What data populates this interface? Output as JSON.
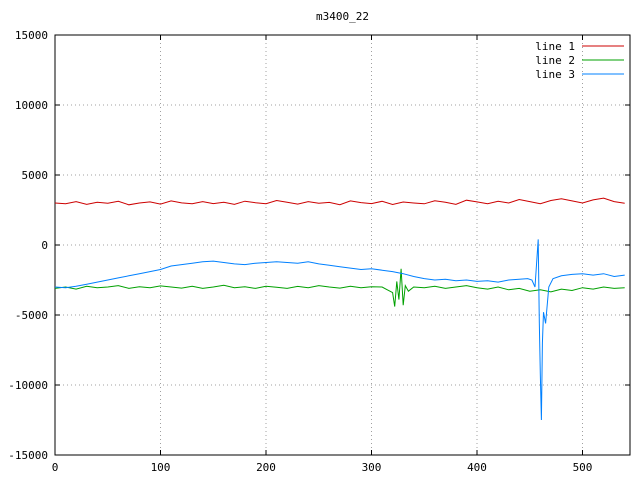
{
  "chart_data": {
    "type": "line",
    "title": "m3400_22",
    "xlabel": "",
    "ylabel": "",
    "xlim": [
      0,
      545
    ],
    "ylim": [
      -15000,
      15000
    ],
    "x_ticks": [
      0,
      100,
      200,
      300,
      400,
      500
    ],
    "y_ticks": [
      -15000,
      -10000,
      -5000,
      0,
      5000,
      10000,
      15000
    ],
    "grid": true,
    "legend_position": "top-right",
    "series": [
      {
        "name": "line 1",
        "color": "#cc0000",
        "x": [
          0,
          10,
          20,
          30,
          40,
          50,
          60,
          70,
          80,
          90,
          100,
          110,
          120,
          130,
          140,
          150,
          160,
          170,
          180,
          190,
          200,
          210,
          220,
          230,
          240,
          250,
          260,
          270,
          280,
          290,
          300,
          310,
          320,
          330,
          340,
          350,
          360,
          370,
          380,
          390,
          400,
          410,
          420,
          430,
          440,
          450,
          460,
          470,
          480,
          490,
          500,
          510,
          520,
          530,
          540
        ],
        "y": [
          3000,
          2950,
          3100,
          2900,
          3050,
          2980,
          3120,
          2870,
          3000,
          3080,
          2920,
          3150,
          3010,
          2940,
          3100,
          2960,
          3050,
          2900,
          3130,
          3020,
          2950,
          3180,
          3060,
          2920,
          3100,
          2980,
          3040,
          2880,
          3150,
          3030,
          2960,
          3120,
          2890,
          3070,
          3000,
          2940,
          3160,
          3050,
          2900,
          3200,
          3080,
          2950,
          3120,
          3000,
          3250,
          3100,
          2950,
          3180,
          3300,
          3150,
          3000,
          3220,
          3350,
          3100,
          2980
        ]
      },
      {
        "name": "line 2",
        "color": "#00a000",
        "x": [
          0,
          10,
          20,
          30,
          40,
          50,
          60,
          70,
          80,
          90,
          100,
          110,
          120,
          130,
          140,
          150,
          160,
          170,
          180,
          190,
          200,
          210,
          220,
          230,
          240,
          250,
          260,
          270,
          280,
          290,
          300,
          310,
          315,
          320,
          322,
          324,
          326,
          328,
          330,
          332,
          335,
          340,
          350,
          360,
          370,
          380,
          390,
          400,
          410,
          420,
          430,
          440,
          450,
          460,
          470,
          480,
          490,
          500,
          510,
          520,
          530,
          540
        ],
        "y": [
          -3100,
          -3000,
          -3150,
          -2950,
          -3050,
          -3000,
          -2900,
          -3100,
          -2980,
          -3050,
          -2920,
          -3000,
          -3080,
          -2950,
          -3100,
          -3000,
          -2880,
          -3050,
          -2980,
          -3100,
          -2950,
          -3020,
          -3100,
          -2960,
          -3050,
          -2900,
          -3000,
          -3080,
          -2940,
          -3050,
          -2980,
          -3000,
          -3200,
          -3400,
          -4400,
          -2600,
          -3900,
          -1700,
          -4300,
          -2900,
          -3300,
          -3000,
          -3050,
          -2950,
          -3100,
          -3000,
          -2900,
          -3050,
          -3150,
          -3000,
          -3200,
          -3100,
          -3300,
          -3200,
          -3350,
          -3150,
          -3250,
          -3050,
          -3150,
          -3000,
          -3100,
          -3050
        ]
      },
      {
        "name": "line 3",
        "color": "#0080ff",
        "x": [
          0,
          10,
          20,
          30,
          40,
          50,
          60,
          70,
          80,
          90,
          100,
          110,
          120,
          130,
          140,
          150,
          160,
          170,
          180,
          190,
          200,
          210,
          220,
          230,
          240,
          250,
          260,
          270,
          280,
          290,
          300,
          310,
          320,
          330,
          340,
          350,
          360,
          370,
          380,
          390,
          400,
          410,
          420,
          430,
          440,
          448,
          452,
          455,
          458,
          459,
          460,
          461,
          462,
          463,
          465,
          468,
          472,
          480,
          490,
          500,
          510,
          520,
          530,
          540
        ],
        "y": [
          -3000,
          -3050,
          -2950,
          -2800,
          -2650,
          -2500,
          -2350,
          -2200,
          -2050,
          -1900,
          -1750,
          -1500,
          -1400,
          -1300,
          -1200,
          -1150,
          -1250,
          -1350,
          -1400,
          -1300,
          -1250,
          -1200,
          -1250,
          -1300,
          -1200,
          -1350,
          -1450,
          -1550,
          -1650,
          -1750,
          -1700,
          -1800,
          -1900,
          -2050,
          -2250,
          -2400,
          -2500,
          -2450,
          -2550,
          -2500,
          -2600,
          -2550,
          -2650,
          -2500,
          -2450,
          -2400,
          -2500,
          -3000,
          400,
          -5500,
          -9200,
          -12500,
          -7000,
          -4800,
          -5600,
          -3000,
          -2400,
          -2200,
          -2100,
          -2050,
          -2150,
          -2050,
          -2250,
          -2150
        ]
      }
    ]
  }
}
